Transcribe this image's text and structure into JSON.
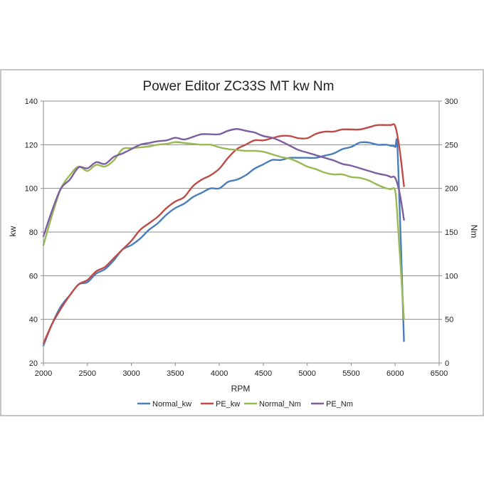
{
  "chart_data": {
    "type": "line",
    "title": "Power Editor ZC33S MT  kw Nm",
    "xlabel": "RPM",
    "ylabel": "kw",
    "y2label": "Nm",
    "xlim": [
      2000,
      6500
    ],
    "xticks": [
      2000,
      2500,
      3000,
      3500,
      4000,
      4500,
      5000,
      5500,
      6000,
      6500
    ],
    "ylim": [
      20,
      140
    ],
    "yticks": [
      20,
      40,
      60,
      80,
      100,
      120,
      140
    ],
    "y2lim": [
      0,
      300
    ],
    "y2ticks": [
      0,
      50,
      100,
      150,
      200,
      250,
      300
    ],
    "grid": true,
    "legend_position": "bottom",
    "series": [
      {
        "name": "Normal_kw",
        "axis": "left",
        "color": "#4a7ebb",
        "x": [
          2000,
          2100,
          2200,
          2300,
          2400,
          2500,
          2600,
          2700,
          2800,
          2900,
          3000,
          3100,
          3200,
          3300,
          3400,
          3500,
          3600,
          3700,
          3800,
          3900,
          4000,
          4100,
          4200,
          4300,
          4400,
          4500,
          4600,
          4700,
          4800,
          4900,
          5000,
          5100,
          5200,
          5300,
          5400,
          5500,
          5600,
          5700,
          5800,
          5900,
          5950,
          6000,
          6030,
          6100
        ],
        "values": [
          28,
          38,
          46,
          51,
          56,
          57,
          61,
          63,
          67,
          72,
          74,
          77,
          81,
          84,
          88,
          91,
          93,
          96,
          98,
          100,
          100,
          103,
          104,
          106,
          109,
          111,
          113,
          113,
          114,
          114,
          114,
          114,
          115,
          116,
          118,
          119,
          121,
          121,
          120,
          120,
          119.5,
          119,
          115,
          30
        ]
      },
      {
        "name": "PE_kw",
        "axis": "left",
        "color": "#be4b48",
        "x": [
          2000,
          2100,
          2200,
          2300,
          2400,
          2500,
          2600,
          2700,
          2800,
          2900,
          3000,
          3100,
          3200,
          3300,
          3400,
          3500,
          3600,
          3700,
          3800,
          3900,
          4000,
          4100,
          4200,
          4300,
          4400,
          4500,
          4600,
          4700,
          4800,
          4900,
          5000,
          5100,
          5200,
          5300,
          5400,
          5500,
          5600,
          5700,
          5800,
          5900,
          5950,
          6000,
          6050,
          6100
        ],
        "values": [
          29,
          38,
          45,
          51,
          56,
          58,
          62,
          64,
          68,
          72,
          76,
          81,
          84,
          87,
          91,
          94,
          96,
          101,
          104,
          106,
          109,
          114,
          118,
          120,
          122,
          122,
          123,
          124,
          124,
          123,
          123,
          125,
          126,
          126,
          127,
          127,
          127,
          128,
          129,
          129,
          129,
          128.5,
          118,
          101
        ]
      },
      {
        "name": "Normal_Nm",
        "axis": "right",
        "color": "#98b954",
        "x": [
          2000,
          2100,
          2200,
          2300,
          2400,
          2500,
          2600,
          2700,
          2800,
          2900,
          3000,
          3100,
          3200,
          3300,
          3400,
          3500,
          3600,
          3700,
          3800,
          3900,
          4000,
          4100,
          4200,
          4300,
          4400,
          4500,
          4600,
          4700,
          4800,
          4900,
          5000,
          5100,
          5200,
          5300,
          5400,
          5500,
          5600,
          5700,
          5800,
          5900,
          5950,
          6000,
          6030,
          6100
        ],
        "values": [
          135,
          170,
          200,
          215,
          225,
          220,
          227,
          225,
          232,
          245,
          246,
          247,
          248,
          250,
          251,
          253,
          252,
          251,
          250,
          250,
          247,
          245,
          244,
          243,
          243,
          242,
          239,
          236,
          234,
          230,
          225,
          222,
          218,
          216,
          216,
          213,
          212,
          209,
          204,
          200,
          199,
          197,
          160,
          50
        ]
      },
      {
        "name": "PE_Nm",
        "axis": "right",
        "color": "#7d5fa0",
        "x": [
          2000,
          2100,
          2200,
          2300,
          2400,
          2500,
          2600,
          2700,
          2800,
          2900,
          3000,
          3100,
          3200,
          3300,
          3400,
          3500,
          3600,
          3700,
          3800,
          3900,
          4000,
          4100,
          4200,
          4300,
          4400,
          4500,
          4600,
          4700,
          4800,
          4900,
          5000,
          5100,
          5200,
          5300,
          5400,
          5500,
          5600,
          5700,
          5800,
          5900,
          5950,
          6000,
          6050,
          6100
        ],
        "values": [
          145,
          175,
          200,
          210,
          224,
          223,
          230,
          228,
          236,
          240,
          245,
          250,
          252,
          254,
          255,
          258,
          256,
          259,
          262,
          262,
          262,
          266,
          268,
          266,
          264,
          260,
          258,
          254,
          249,
          244,
          241,
          238,
          235,
          232,
          228,
          226,
          223,
          220,
          217,
          215,
          213,
          212,
          195,
          164
        ]
      }
    ]
  }
}
